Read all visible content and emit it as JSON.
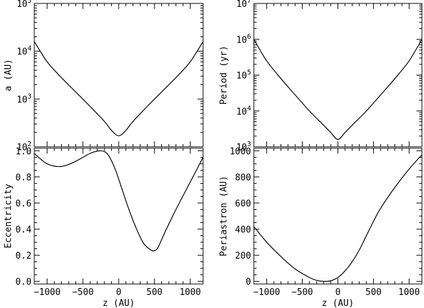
{
  "chart_data": [
    {
      "id": "a",
      "type": "line",
      "ylabel": "a (AU)",
      "xlabel": "",
      "xlim": [
        -1180,
        1180
      ],
      "ylim": [
        100,
        100000
      ],
      "yscale": "log",
      "yticks": [
        {
          "value": 100,
          "base": "10",
          "exp": "2"
        },
        {
          "value": 1000,
          "base": "10",
          "exp": "3"
        },
        {
          "value": 10000,
          "base": "10",
          "exp": "4"
        },
        {
          "value": 100000,
          "base": "10",
          "exp": "5"
        }
      ],
      "xticks": [],
      "x": [
        -1180,
        -1000,
        -800,
        -600,
        -400,
        -200,
        -100,
        0,
        100,
        200,
        400,
        600,
        800,
        1000,
        1180
      ],
      "y": [
        16000,
        6000,
        2800,
        1400,
        700,
        340,
        220,
        170,
        220,
        340,
        700,
        1400,
        2800,
        6000,
        16000
      ]
    },
    {
      "id": "period",
      "type": "line",
      "ylabel": "Period (yr)",
      "xlabel": "",
      "xlim": [
        -1180,
        1180
      ],
      "ylim": [
        1000,
        10000000
      ],
      "yscale": "log",
      "yticks": [
        {
          "value": 1000,
          "base": "10",
          "exp": "3"
        },
        {
          "value": 10000,
          "base": "10",
          "exp": "4"
        },
        {
          "value": 100000,
          "base": "10",
          "exp": "5"
        },
        {
          "value": 1000000,
          "base": "10",
          "exp": "6"
        },
        {
          "value": 10000000,
          "base": "10",
          "exp": "7"
        }
      ],
      "xticks": [],
      "x": [
        -1180,
        -1000,
        -800,
        -600,
        -400,
        -200,
        -100,
        0,
        100,
        200,
        400,
        600,
        800,
        1000,
        1180
      ],
      "y": [
        1000000,
        250000,
        80000,
        28000,
        10000,
        4000,
        2500,
        1600,
        2500,
        4000,
        10000,
        28000,
        80000,
        250000,
        1000000
      ]
    },
    {
      "id": "eccentricity",
      "type": "line",
      "ylabel": "Eccentricity",
      "xlabel": "z (AU)",
      "xlim": [
        -1180,
        1180
      ],
      "ylim": [
        -0.02,
        1.02
      ],
      "yscale": "linear",
      "yticks": [
        {
          "value": 0.0,
          "label": "0.0"
        },
        {
          "value": 0.2,
          "label": "0.2"
        },
        {
          "value": 0.4,
          "label": "0.4"
        },
        {
          "value": 0.6,
          "label": "0.6"
        },
        {
          "value": 0.8,
          "label": "0.8"
        },
        {
          "value": 1.0,
          "label": "1.0"
        }
      ],
      "xticks": [
        {
          "value": -1000,
          "label": "−1000"
        },
        {
          "value": -500,
          "label": "−500"
        },
        {
          "value": 0,
          "label": "0"
        },
        {
          "value": 500,
          "label": "500"
        },
        {
          "value": 1000,
          "label": "1000"
        }
      ],
      "x": [
        -1180,
        -1000,
        -800,
        -600,
        -400,
        -250,
        -150,
        -50,
        50,
        150,
        250,
        350,
        450,
        500,
        550,
        650,
        800,
        1000,
        1180
      ],
      "y": [
        0.98,
        0.9,
        0.88,
        0.92,
        0.98,
        1.0,
        0.97,
        0.86,
        0.7,
        0.54,
        0.4,
        0.29,
        0.24,
        0.235,
        0.26,
        0.38,
        0.55,
        0.76,
        0.95
      ]
    },
    {
      "id": "periastron",
      "type": "line",
      "ylabel": "Periastron (AU)",
      "xlabel": "z (AU)",
      "xlim": [
        -1180,
        1180
      ],
      "ylim": [
        -20,
        1020
      ],
      "yscale": "linear",
      "yticks": [
        {
          "value": 0,
          "label": "0"
        },
        {
          "value": 200,
          "label": "200"
        },
        {
          "value": 400,
          "label": "400"
        },
        {
          "value": 600,
          "label": "600"
        },
        {
          "value": 800,
          "label": "800"
        },
        {
          "value": 1000,
          "label": "1000"
        }
      ],
      "xticks": [
        {
          "value": -1000,
          "label": "−1000"
        },
        {
          "value": -500,
          "label": "−500"
        },
        {
          "value": 0,
          "label": "0"
        },
        {
          "value": 500,
          "label": "500"
        },
        {
          "value": 1000,
          "label": "1000"
        }
      ],
      "x": [
        -1180,
        -1000,
        -800,
        -600,
        -400,
        -300,
        -200,
        -100,
        0,
        100,
        200,
        300,
        400,
        500,
        600,
        800,
        1000,
        1180
      ],
      "y": [
        420,
        300,
        190,
        95,
        30,
        8,
        0,
        5,
        30,
        80,
        150,
        240,
        350,
        460,
        560,
        720,
        860,
        970
      ]
    }
  ]
}
